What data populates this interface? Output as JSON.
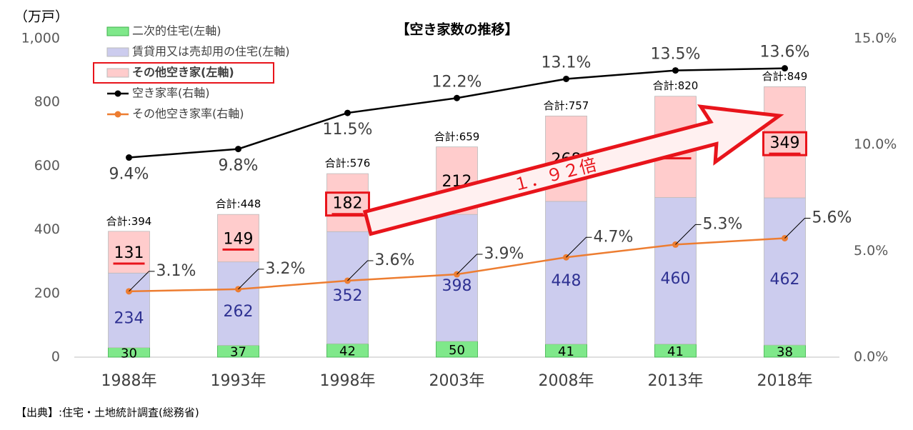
{
  "chart_data": {
    "type": "bar-line",
    "title": "【空き家数の推移】",
    "unit_label": "（万戸）",
    "source": "【出典】:住宅・土地統計調査(総務省)",
    "annotation": "１．９２倍",
    "categories": [
      "1988年",
      "1993年",
      "1998年",
      "2003年",
      "2008年",
      "2013年",
      "2018年"
    ],
    "series": [
      {
        "name": "二次的住宅(左軸)",
        "color": "#7fe88a",
        "values": [
          30,
          37,
          42,
          50,
          41,
          41,
          38
        ]
      },
      {
        "name": "賃貸用又は売却用の住宅(左軸)",
        "color": "#ccccee",
        "values": [
          234,
          262,
          352,
          398,
          448,
          460,
          462
        ]
      },
      {
        "name": "その他空き家(左軸)",
        "color": "#ffcccc",
        "values": [
          131,
          149,
          182,
          212,
          268,
          318,
          349
        ]
      },
      {
        "name": "空き家率(右軸)",
        "color": "#000000",
        "axis": "y2",
        "values": [
          9.4,
          9.8,
          11.5,
          12.2,
          13.1,
          13.5,
          13.6
        ],
        "value_labels": [
          "9.4%",
          "9.8%",
          "11.5%",
          "12.2%",
          "13.1%",
          "13.5%",
          "13.6%"
        ]
      },
      {
        "name": "その他空き家率(右軸)",
        "color": "#ed7d31",
        "axis": "y2",
        "values": [
          3.1,
          3.2,
          3.6,
          3.9,
          4.7,
          5.3,
          5.6
        ],
        "value_labels": [
          "3.1%",
          "3.2%",
          "3.6%",
          "3.9%",
          "4.7%",
          "5.3%",
          "5.6%"
        ]
      }
    ],
    "totals": {
      "values": [
        394,
        448,
        576,
        659,
        757,
        820,
        849
      ],
      "value_labels": [
        "合計:394",
        "合計:448",
        "合計:576",
        "合計:659",
        "合計:757",
        "合計:820",
        "合計:849"
      ]
    },
    "ylim": [
      0,
      1000
    ],
    "yticks": [
      0,
      200,
      400,
      600,
      800,
      {
        "value": 1000,
        "label": "1,000"
      }
    ],
    "y2lim": [
      0,
      15
    ],
    "y2ticks": [
      {
        "value": 0,
        "label": "0.0%"
      },
      {
        "value": 5,
        "label": "5.0%"
      },
      {
        "value": 10,
        "label": "10.0%"
      },
      {
        "value": 15,
        "label": "15.0%"
      }
    ]
  }
}
